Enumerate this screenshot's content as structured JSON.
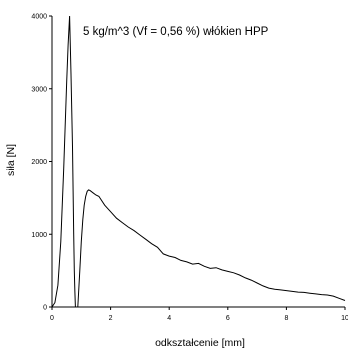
{
  "chart_data": {
    "type": "line",
    "title": "5 kg/m^3  (Vf = 0,56 %) włókien HPP",
    "xlabel": "odkształcenie [mm]",
    "ylabel": "siła [N]",
    "xlim": [
      0,
      10
    ],
    "ylim": [
      0,
      4000
    ],
    "x_ticks": [
      0,
      2,
      4,
      6,
      8,
      10
    ],
    "y_ticks": [
      0,
      1000,
      2000,
      3000,
      4000
    ],
    "grid": false,
    "series": [
      {
        "x": [
          0.0,
          0.1,
          0.2,
          0.3,
          0.4,
          0.5,
          0.55,
          0.6,
          0.65,
          0.7,
          0.72,
          0.74,
          0.76,
          0.78,
          0.8,
          0.83,
          0.86,
          0.88,
          0.9,
          0.95,
          1.0,
          1.05,
          1.1,
          1.15,
          1.2,
          1.25,
          1.3,
          1.4,
          1.5,
          1.6,
          1.8,
          2.0,
          2.2,
          2.4,
          2.6,
          2.8,
          3.0,
          3.2,
          3.4,
          3.6,
          3.8,
          4.0,
          4.2,
          4.4,
          4.6,
          4.8,
          5.0,
          5.2,
          5.4,
          5.6,
          5.8,
          6.0,
          6.2,
          6.4,
          6.6,
          6.8,
          7.0,
          7.2,
          7.4,
          7.6,
          7.8,
          8.0,
          8.2,
          8.4,
          8.6,
          8.8,
          9.0,
          9.2,
          9.4,
          9.6,
          9.8,
          10.0
        ],
        "y": [
          0,
          60,
          300,
          900,
          1900,
          3100,
          3600,
          4000,
          3200,
          2200,
          1600,
          1000,
          500,
          200,
          0,
          0,
          0,
          0,
          150,
          500,
          900,
          1200,
          1400,
          1520,
          1590,
          1610,
          1600,
          1570,
          1540,
          1520,
          1400,
          1310,
          1220,
          1160,
          1100,
          1050,
          990,
          930,
          870,
          820,
          730,
          700,
          680,
          640,
          620,
          590,
          600,
          560,
          530,
          540,
          510,
          490,
          470,
          440,
          400,
          370,
          330,
          290,
          260,
          245,
          235,
          225,
          215,
          205,
          200,
          190,
          180,
          170,
          165,
          150,
          120,
          90
        ]
      }
    ]
  }
}
